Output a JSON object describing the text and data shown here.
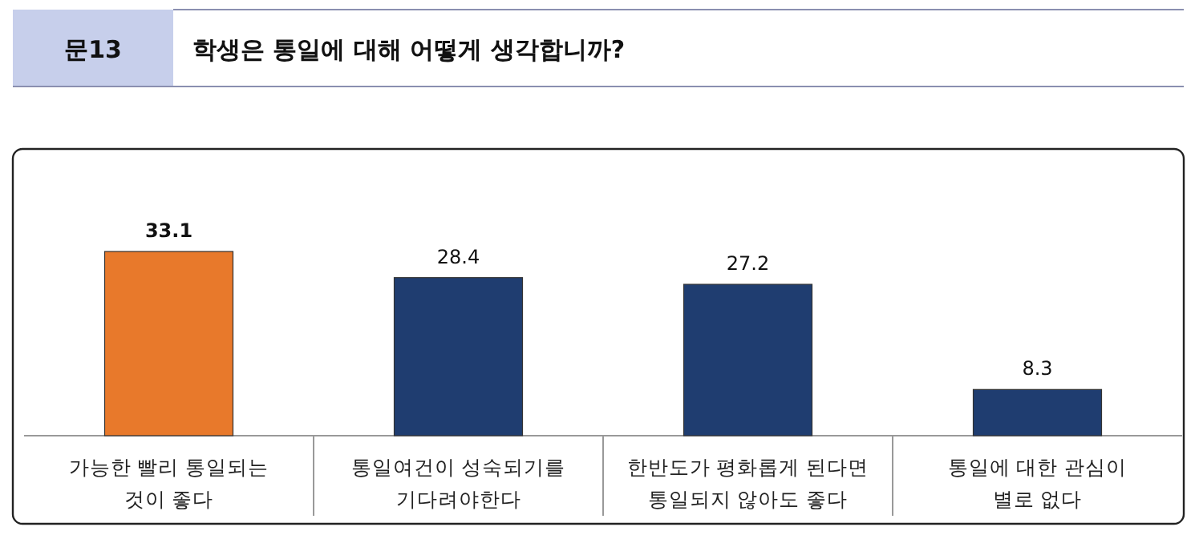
{
  "chart_data": {
    "type": "bar",
    "subtitle": "문13",
    "title": "학생은 통일에 대해 어떻게 생각합니까?",
    "categories": [
      "가능한 빨리 통일되는\n것이 좋다",
      "통일여건이 성숙되기를\n기다려야한다",
      "한반도가 평화롭게 된다면\n통일되지 않아도 좋다",
      "통일에 대한 관심이\n별로 없다"
    ],
    "values": [
      33.1,
      28.4,
      27.2,
      8.3
    ],
    "colors": [
      "#e8792b",
      "#1f3d70",
      "#1f3d70",
      "#1f3d70"
    ],
    "data_labels": true
  }
}
